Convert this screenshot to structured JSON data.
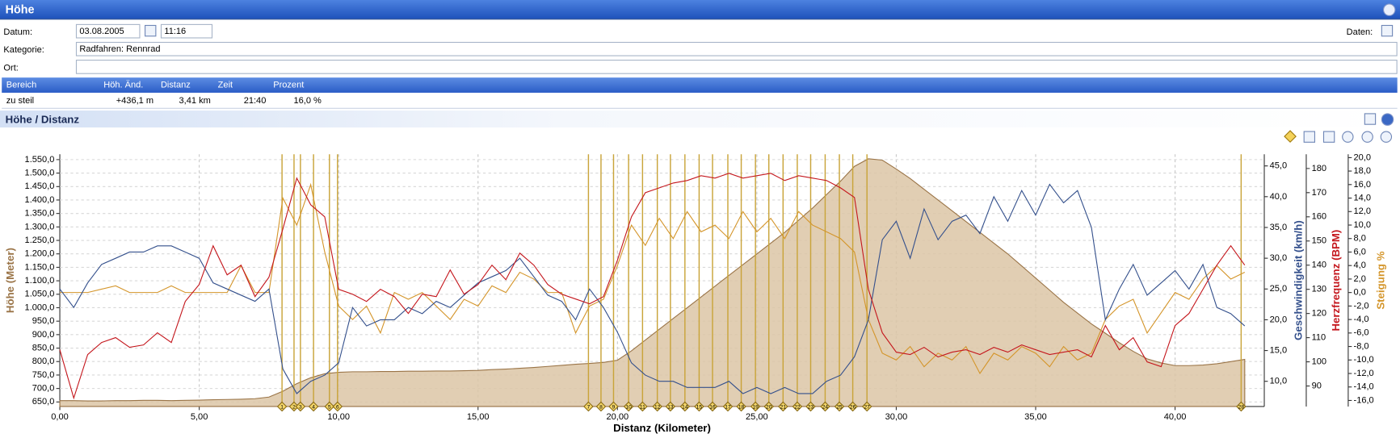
{
  "window": {
    "title": "Höhe"
  },
  "form": {
    "date_label": "Datum:",
    "date": "03.08.2005",
    "time": "11:16",
    "data_label": "Daten:",
    "category_label": "Kategorie:",
    "category": "Radfahren: Rennrad",
    "place_label": "Ort:"
  },
  "table": {
    "columns": [
      "Bereich",
      "Höh. Änd.",
      "Distanz",
      "Zeit",
      "Prozent"
    ],
    "rows": [
      [
        "zu steil",
        "+436,1 m",
        "3,41 km",
        "21:40",
        "16,0 %"
      ]
    ]
  },
  "panel": {
    "title": "Höhe / Distanz"
  },
  "chart_data": {
    "type": "line",
    "xlabel": "Distanz (Kilometer)",
    "grid": true,
    "xlim": [
      0,
      43.2
    ],
    "xticks": [
      {
        "value": 0,
        "label": "0,00"
      },
      {
        "value": 5,
        "label": "5,00"
      },
      {
        "value": 10,
        "label": "10,00"
      },
      {
        "value": 15,
        "label": "15,00"
      },
      {
        "value": 20,
        "label": "20,00"
      },
      {
        "value": 25,
        "label": "25,00"
      },
      {
        "value": 30,
        "label": "30,00"
      },
      {
        "value": 35,
        "label": "35,00"
      },
      {
        "value": 40,
        "label": "40,00"
      }
    ],
    "ylim": [
      633,
      1570
    ],
    "yticks": [
      {
        "value": 650,
        "label": "650,0"
      },
      {
        "value": 700,
        "label": "700,0"
      },
      {
        "value": 750,
        "label": "750,0"
      },
      {
        "value": 800,
        "label": "800,0"
      },
      {
        "value": 850,
        "label": "850,0"
      },
      {
        "value": 900,
        "label": "900,0"
      },
      {
        "value": 950,
        "label": "950,0"
      },
      {
        "value": 1000,
        "label": "1.000,0"
      },
      {
        "value": 1050,
        "label": "1.050,0"
      },
      {
        "value": 1100,
        "label": "1.100,0"
      },
      {
        "value": 1150,
        "label": "1.150,0"
      },
      {
        "value": 1200,
        "label": "1.200,0"
      },
      {
        "value": 1250,
        "label": "1.250,0"
      },
      {
        "value": 1300,
        "label": "1.300,0"
      },
      {
        "value": 1350,
        "label": "1.350,0"
      },
      {
        "value": 1400,
        "label": "1.400,0"
      },
      {
        "value": 1450,
        "label": "1.450,0"
      },
      {
        "value": 1500,
        "label": "1.500,0"
      },
      {
        "value": 1550,
        "label": "1.550,0"
      }
    ],
    "y2lim": [
      5.9,
      46.9
    ],
    "y2ticks": [
      {
        "value": 10,
        "label": "10,0"
      },
      {
        "value": 15,
        "label": "15,0"
      },
      {
        "value": 20,
        "label": "20,0"
      },
      {
        "value": 25,
        "label": "25,0"
      },
      {
        "value": 30,
        "label": "30,0"
      },
      {
        "value": 35,
        "label": "35,0"
      },
      {
        "value": 40,
        "label": "40,0"
      },
      {
        "value": 45,
        "label": "45,0"
      }
    ],
    "y3lim": [
      81.5,
      185.9
    ],
    "y3ticks": [
      90,
      100,
      110,
      120,
      130,
      140,
      150,
      160,
      170,
      180
    ],
    "y4lim": [
      -16.9,
      20.5
    ],
    "y4ticks": [
      {
        "value": -16,
        "label": "-16,0"
      },
      {
        "value": -14,
        "label": "-14,0"
      },
      {
        "value": -12,
        "label": "-12,0"
      },
      {
        "value": -10,
        "label": "-10,0"
      },
      {
        "value": -8,
        "label": "-8,0"
      },
      {
        "value": -6,
        "label": "-6,0"
      },
      {
        "value": -4,
        "label": "-4,0"
      },
      {
        "value": -2,
        "label": "-2,0"
      },
      {
        "value": 0,
        "label": "0,0"
      },
      {
        "value": 2,
        "label": "2,0"
      },
      {
        "value": 4,
        "label": "4,0"
      },
      {
        "value": 6,
        "label": "6,0"
      },
      {
        "value": 8,
        "label": "8,0"
      },
      {
        "value": 10,
        "label": "10,0"
      },
      {
        "value": 12,
        "label": "12,0"
      },
      {
        "value": 14,
        "label": "14,0"
      },
      {
        "value": 16,
        "label": "16,0"
      },
      {
        "value": 18,
        "label": "18,0"
      },
      {
        "value": 20,
        "label": "20,0"
      }
    ],
    "x": [
      0,
      0.5,
      1,
      1.5,
      2,
      2.5,
      3,
      3.5,
      4,
      4.5,
      5,
      5.5,
      6,
      6.5,
      7,
      7.5,
      8,
      8.5,
      9,
      9.5,
      10,
      10.5,
      11,
      11.5,
      12,
      12.5,
      13,
      13.5,
      14,
      14.5,
      15,
      15.5,
      16,
      16.5,
      17,
      17.5,
      18,
      18.5,
      19,
      19.5,
      20,
      20.5,
      21,
      21.5,
      22,
      22.5,
      23,
      23.5,
      24,
      24.5,
      25,
      25.5,
      26,
      26.5,
      27,
      27.5,
      28,
      28.5,
      29,
      29.5,
      30,
      30.5,
      31,
      31.5,
      32,
      32.5,
      33,
      33.5,
      34,
      34.5,
      35,
      35.5,
      36,
      36.5,
      37,
      37.5,
      38,
      38.5,
      39,
      39.5,
      40,
      40.5,
      41,
      41.5,
      42,
      42.5
    ],
    "series": [
      {
        "name": "Höhe (Meter)",
        "axis": "y",
        "color": "#9a7447",
        "fill": "#dcc6a6",
        "values": [
          655,
          655,
          654,
          654,
          655,
          655,
          656,
          656,
          655,
          656,
          657,
          658,
          659,
          660,
          662,
          668,
          690,
          718,
          740,
          755,
          760,
          762,
          762,
          763,
          763,
          764,
          764,
          765,
          765,
          766,
          767,
          770,
          772,
          775,
          778,
          782,
          786,
          790,
          793,
          797,
          805,
          840,
          880,
          920,
          960,
          1000,
          1040,
          1080,
          1120,
          1160,
          1200,
          1240,
          1280,
          1325,
          1370,
          1420,
          1470,
          1525,
          1553,
          1548,
          1515,
          1480,
          1440,
          1400,
          1360,
          1320,
          1280,
          1240,
          1200,
          1155,
          1110,
          1065,
          1020,
          980,
          940,
          905,
          870,
          838,
          810,
          795,
          785,
          785,
          787,
          792,
          800,
          808
        ]
      },
      {
        "name": "Steigung %",
        "axis": "y4",
        "color": "#d4952a",
        "values": [
          0,
          0,
          0,
          0.5,
          1,
          0,
          0,
          0,
          1,
          0,
          0,
          0,
          0,
          4,
          0,
          0,
          14,
          10,
          16,
          6,
          -2,
          -4,
          -2,
          -6,
          0,
          -1,
          0,
          -2,
          -4,
          -1,
          -2,
          1,
          0,
          3,
          2,
          0,
          0,
          -6,
          -2,
          -1,
          4,
          10,
          7,
          11,
          8,
          12,
          9,
          10,
          8,
          12,
          9,
          11,
          8,
          12,
          10,
          9,
          8,
          6,
          -4,
          -9,
          -10,
          -8,
          -11,
          -9,
          -10,
          -8,
          -12,
          -9,
          -10,
          -8,
          -9,
          -11,
          -8,
          -10,
          -9,
          -4,
          -2,
          -1,
          -6,
          -3,
          0,
          -1,
          2,
          4,
          2,
          3
        ]
      },
      {
        "name": "Geschwindigkeit (km/h)",
        "axis": "y2",
        "color": "#34508c",
        "values": [
          25,
          22,
          26,
          29,
          30,
          31,
          31,
          32,
          32,
          31,
          30,
          26,
          25,
          24,
          23,
          25,
          12,
          8,
          10,
          11,
          13,
          22,
          19,
          20,
          20,
          22,
          21,
          23,
          22,
          24,
          26,
          27,
          28,
          30,
          27,
          24,
          23,
          20,
          25,
          22,
          18,
          13,
          11,
          10,
          10,
          9,
          9,
          9,
          10,
          8,
          9,
          8,
          9,
          8,
          8,
          10,
          11,
          14,
          20,
          33,
          36,
          30,
          38,
          33,
          36,
          37,
          34,
          40,
          36,
          41,
          37,
          42,
          39,
          41,
          35,
          20,
          25,
          29,
          24,
          26,
          28,
          25,
          29,
          22,
          21,
          19
        ]
      },
      {
        "name": "Herzfrequenz (BPM)",
        "axis": "y3",
        "color": "#c4161c",
        "values": [
          105,
          85,
          103,
          108,
          110,
          106,
          107,
          112,
          108,
          125,
          132,
          148,
          136,
          140,
          127,
          135,
          155,
          176,
          165,
          160,
          130,
          128,
          125,
          130,
          127,
          120,
          128,
          127,
          138,
          128,
          132,
          140,
          134,
          145,
          140,
          132,
          128,
          126,
          124,
          127,
          142,
          160,
          170,
          172,
          174,
          175,
          177,
          176,
          178,
          176,
          177,
          178,
          175,
          177,
          176,
          175,
          172,
          168,
          130,
          112,
          104,
          103,
          106,
          102,
          104,
          105,
          103,
          106,
          104,
          107,
          105,
          103,
          104,
          105,
          102,
          115,
          105,
          110,
          100,
          98,
          115,
          120,
          130,
          140,
          148,
          140
        ]
      }
    ],
    "markers": {
      "labels": [
        1,
        2,
        3,
        4,
        5,
        6,
        7,
        8,
        9,
        10,
        11,
        12,
        13,
        14,
        15,
        16,
        17,
        18,
        19,
        20,
        21,
        22,
        23,
        24,
        25,
        26,
        27,
        28
      ],
      "x": [
        7.97,
        8.4,
        8.63,
        9.1,
        9.67,
        9.96,
        18.96,
        19.41,
        19.86,
        20.4,
        20.9,
        21.43,
        21.9,
        22.42,
        22.93,
        23.41,
        23.96,
        24.44,
        24.95,
        25.43,
        25.94,
        26.45,
        26.93,
        27.45,
        27.96,
        28.44,
        28.95,
        42.37
      ]
    }
  }
}
